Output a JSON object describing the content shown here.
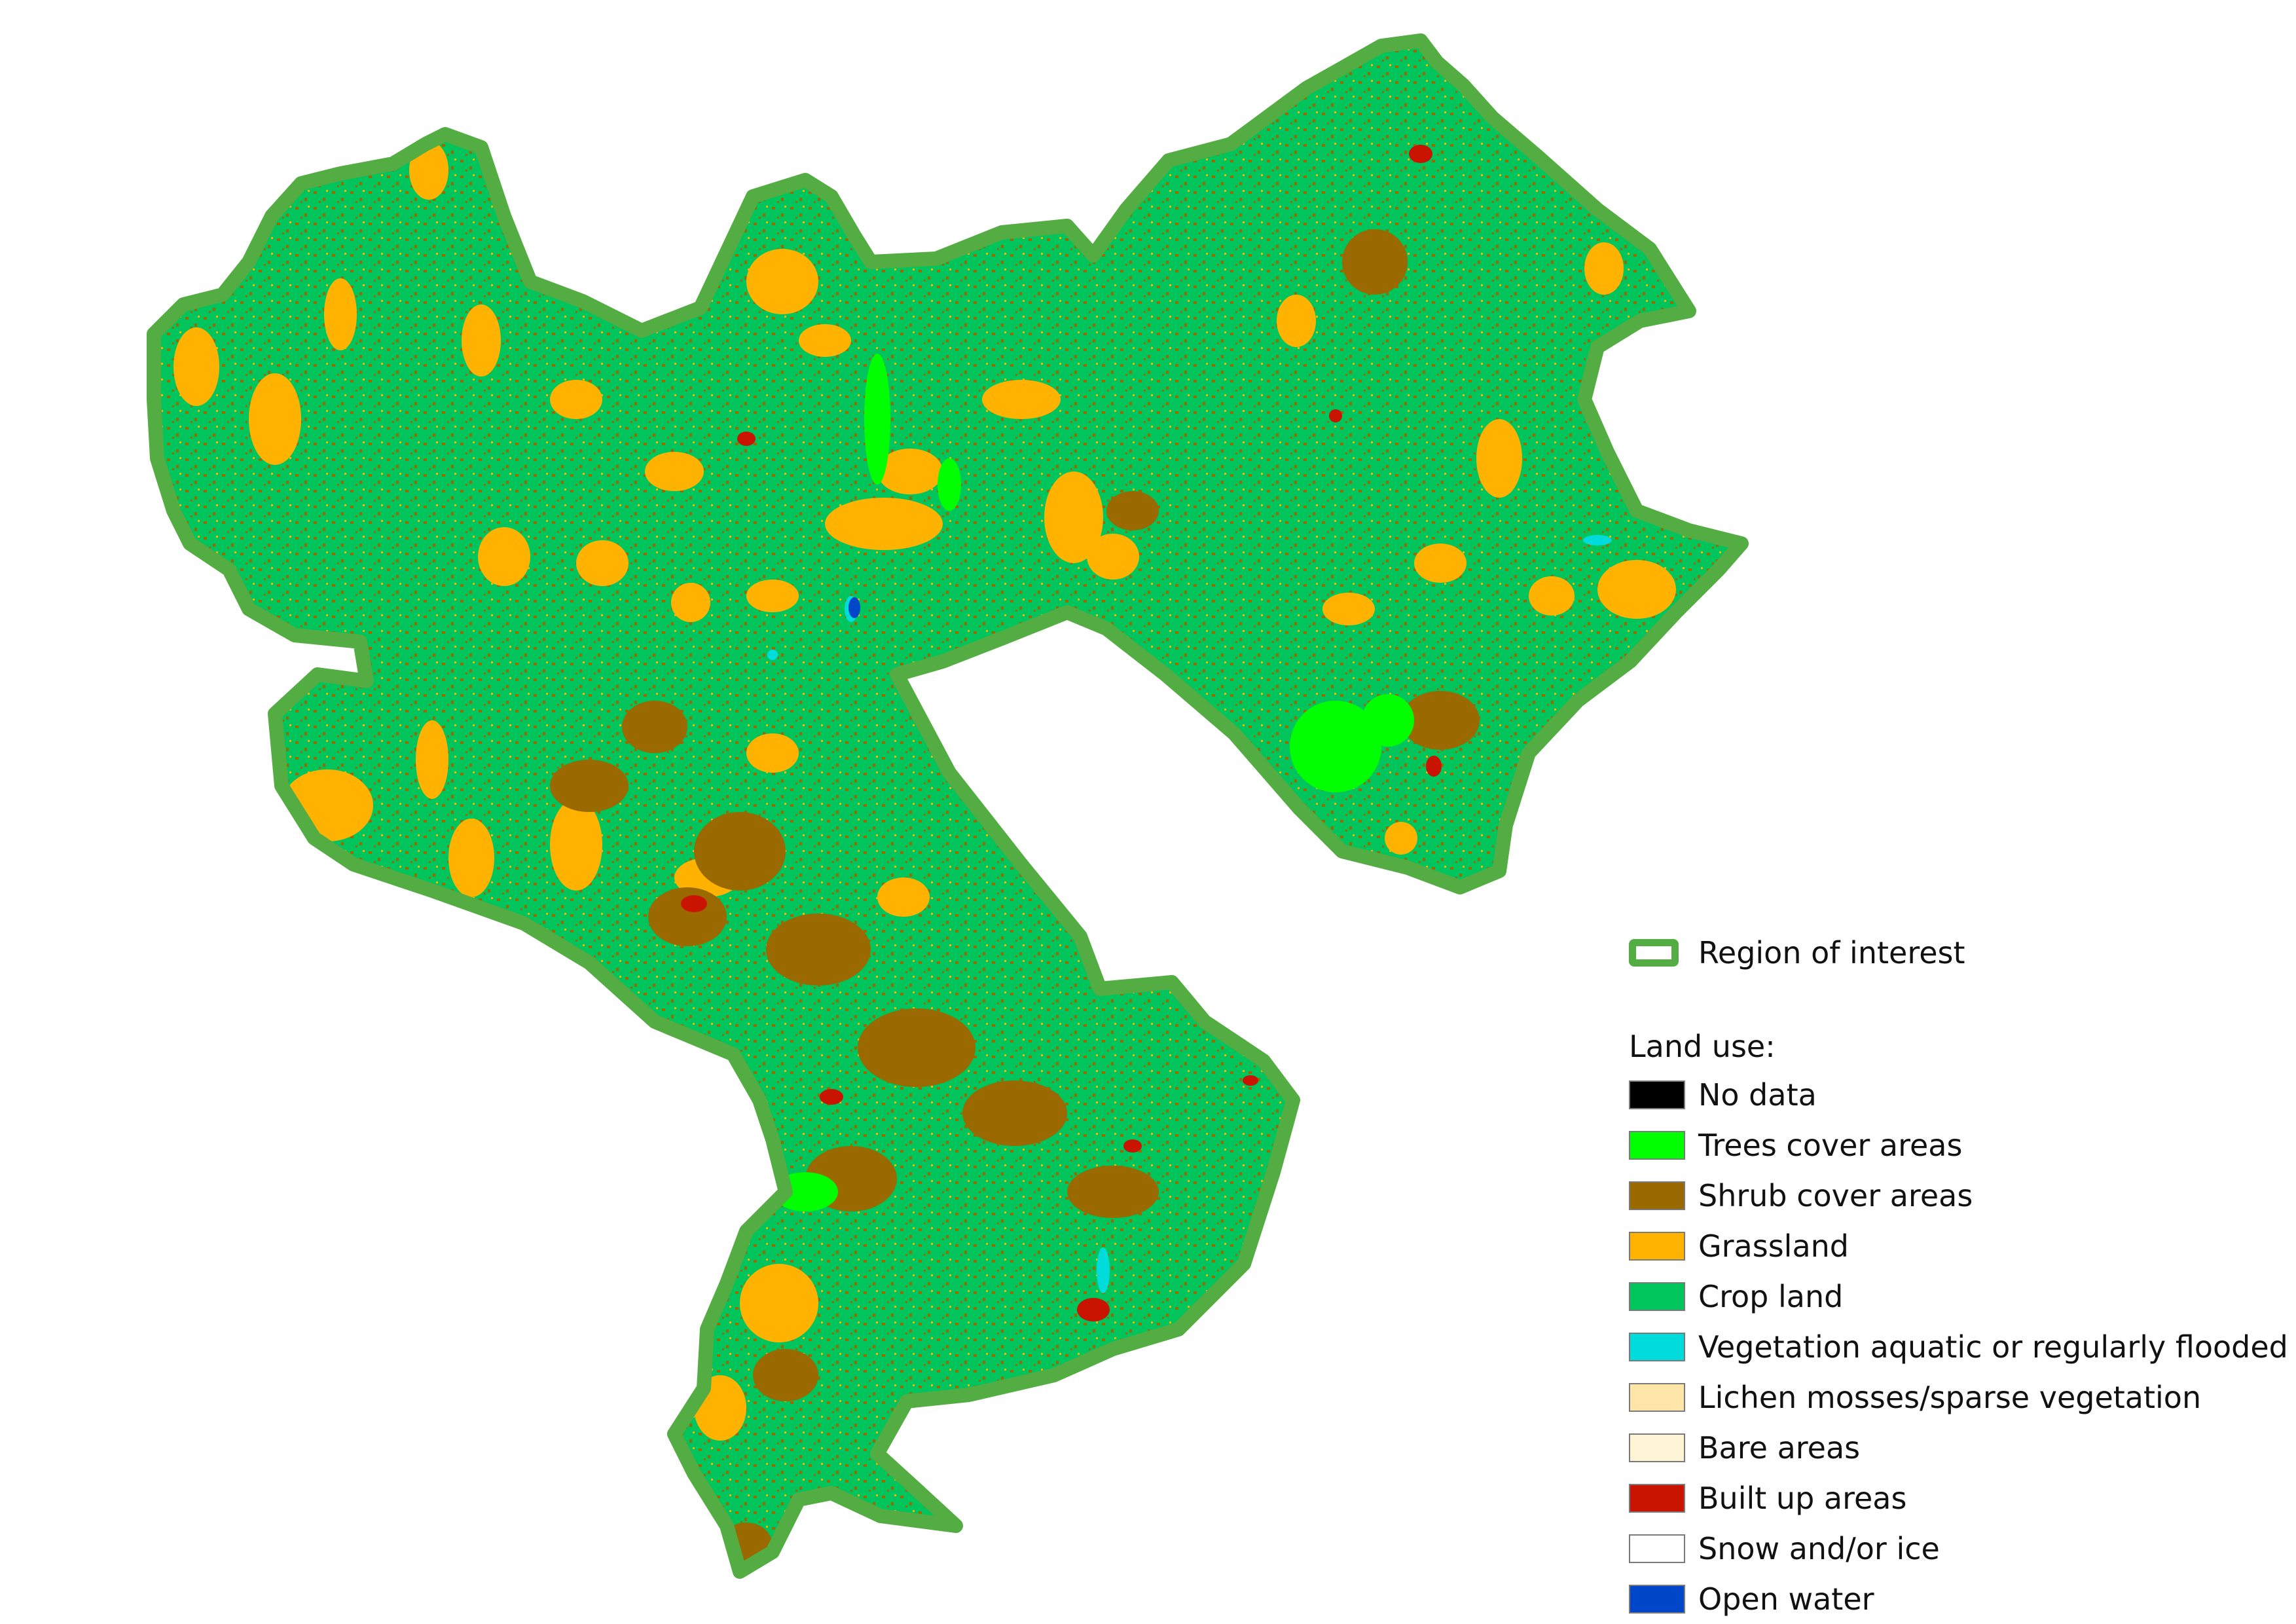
{
  "legend": {
    "region_label": "Region of interest",
    "region_outline_color": "#53ad43",
    "title": "Land use:",
    "items": [
      {
        "label": "No data",
        "color": "#000000"
      },
      {
        "label": "Trees cover areas",
        "color": "#00ff00"
      },
      {
        "label": "Shrub cover areas",
        "color": "#9a6a00"
      },
      {
        "label": "Grassland",
        "color": "#ffb300"
      },
      {
        "label": "Crop land",
        "color": "#00c45c"
      },
      {
        "label": "Vegetation aquatic or regularly flooded",
        "color": "#00dcdc"
      },
      {
        "label": "Lichen mosses/sparse vegetation",
        "color": "#ffe6a8"
      },
      {
        "label": "Bare areas",
        "color": "#fff5d6"
      },
      {
        "label": "Built up areas",
        "color": "#c81400"
      },
      {
        "label": "Snow and/or ice",
        "color": "#ffffff"
      },
      {
        "label": "Open water",
        "color": "#0046c8"
      }
    ]
  }
}
